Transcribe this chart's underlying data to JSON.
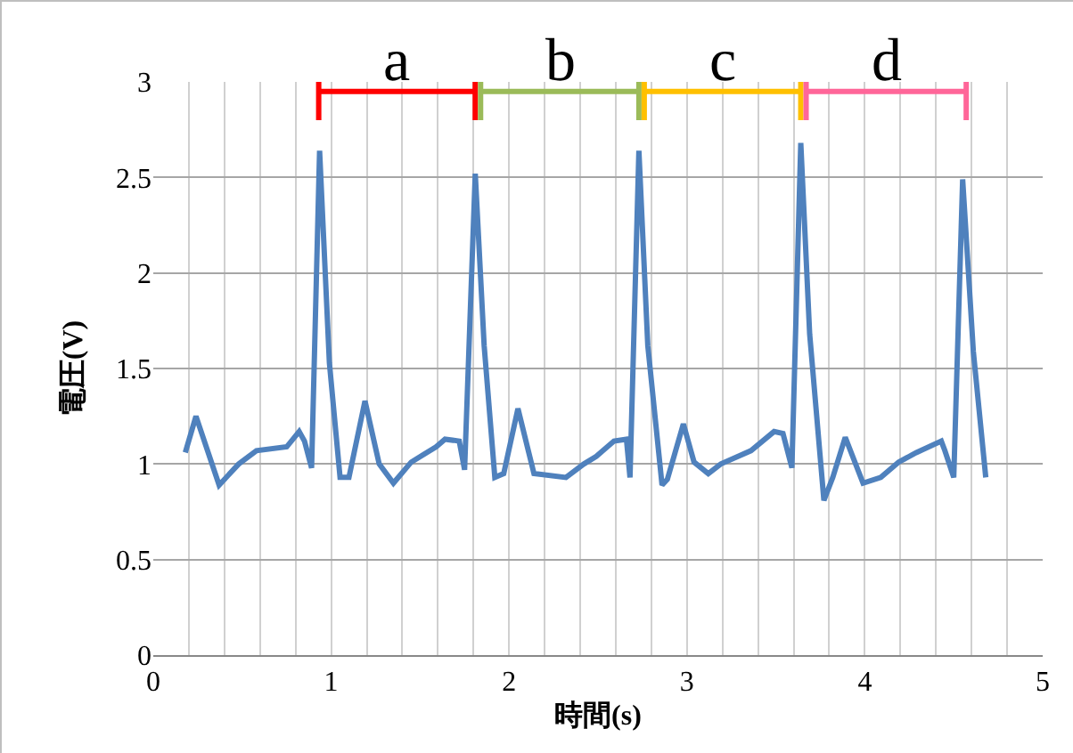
{
  "chart_data": {
    "type": "line",
    "xlabel": "時間(s)",
    "ylabel": "電圧(V)",
    "xlim": [
      0,
      5
    ],
    "ylim": [
      0,
      3
    ],
    "xticks": [
      0,
      {
        "value": 0.2,
        "label": null
      },
      {
        "value": 0.4,
        "label": null
      },
      {
        "value": 0.6,
        "label": null
      },
      {
        "value": 0.8,
        "label": null
      },
      1,
      {
        "value": 1.2,
        "label": null
      },
      {
        "value": 1.4,
        "label": null
      },
      {
        "value": 1.6,
        "label": null
      },
      {
        "value": 1.8,
        "label": null
      },
      2,
      {
        "value": 2.2,
        "label": null
      },
      {
        "value": 2.4,
        "label": null
      },
      {
        "value": 2.6,
        "label": null
      },
      {
        "value": 2.8,
        "label": null
      },
      3,
      {
        "value": 3.2,
        "label": null
      },
      {
        "value": 3.4,
        "label": null
      },
      {
        "value": 3.6,
        "label": null
      },
      {
        "value": 3.8,
        "label": null
      },
      4,
      {
        "value": 4.2,
        "label": null
      },
      {
        "value": 4.4,
        "label": null
      },
      {
        "value": 4.6,
        "label": null
      },
      {
        "value": 4.8,
        "label": null
      },
      5
    ],
    "yticks": [
      0,
      0.5,
      1,
      1.5,
      2,
      2.5,
      3
    ],
    "grid": true,
    "legend": false,
    "marker": "none",
    "line_style": "solid",
    "series": [
      {
        "color": "#4f81bd",
        "x": [
          0.18,
          0.24,
          0.37,
          0.48,
          0.58,
          0.75,
          0.82,
          0.85,
          0.89,
          0.935,
          0.99,
          1.05,
          1.1,
          1.19,
          1.27,
          1.35,
          1.45,
          1.59,
          1.64,
          1.72,
          1.75,
          1.81,
          1.86,
          1.92,
          1.97,
          2.05,
          2.14,
          2.32,
          2.42,
          2.49,
          2.59,
          2.66,
          2.68,
          2.73,
          2.78,
          2.86,
          2.89,
          2.98,
          3.04,
          3.12,
          3.19,
          3.36,
          3.49,
          3.54,
          3.59,
          3.64,
          3.69,
          3.77,
          3.82,
          3.89,
          3.99,
          4.09,
          4.19,
          4.29,
          4.43,
          4.45,
          4.5,
          4.55,
          4.61,
          4.68
        ],
        "values": [
          1.06,
          1.25,
          0.89,
          1.0,
          1.07,
          1.09,
          1.17,
          1.12,
          0.98,
          2.64,
          1.53,
          0.93,
          0.93,
          1.33,
          1.0,
          0.9,
          1.01,
          1.09,
          1.13,
          1.12,
          0.97,
          2.52,
          1.62,
          0.93,
          0.95,
          1.29,
          0.95,
          0.93,
          1.0,
          1.04,
          1.12,
          1.13,
          0.93,
          2.64,
          1.62,
          0.89,
          0.92,
          1.21,
          1.01,
          0.95,
          1.0,
          1.07,
          1.17,
          1.16,
          0.98,
          2.68,
          1.68,
          0.81,
          0.93,
          1.14,
          0.9,
          0.93,
          1.01,
          1.06,
          1.12,
          1.07,
          0.93,
          2.49,
          1.59,
          0.93
        ]
      },
      {
        "name": "a",
        "color": "#ff0000",
        "x": [
          0.93,
          0.93,
          0.93,
          1.81,
          1.81,
          1.81
        ],
        "values": [
          2.8,
          3.0,
          2.95,
          2.95,
          3.0,
          2.8
        ]
      },
      {
        "name": "b",
        "color": "#9bbb59",
        "x": [
          1.84,
          1.84,
          1.84,
          2.73,
          2.73,
          2.73
        ],
        "values": [
          2.8,
          3.0,
          2.95,
          2.95,
          3.0,
          2.8
        ]
      },
      {
        "name": "c",
        "color": "#ffc000",
        "x": [
          2.76,
          2.76,
          2.76,
          3.64,
          3.64,
          3.64
        ],
        "values": [
          2.8,
          3.0,
          2.95,
          2.95,
          3.0,
          2.8
        ]
      },
      {
        "name": "d",
        "color": "#ff6699",
        "x": [
          3.67,
          3.67,
          3.67,
          4.57,
          4.57,
          4.57
        ],
        "values": [
          2.8,
          3.0,
          2.95,
          2.95,
          3.0,
          2.8
        ]
      }
    ]
  }
}
